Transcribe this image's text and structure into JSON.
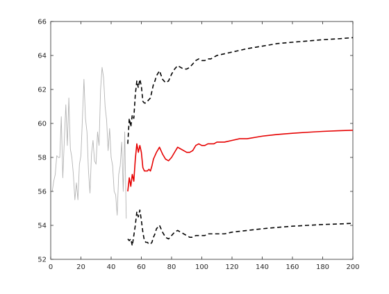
{
  "chart_data": {
    "type": "line",
    "title": "",
    "xlabel": "",
    "ylabel": "",
    "xlim": [
      0,
      200
    ],
    "ylim": [
      52,
      66
    ],
    "xticks": [
      0,
      20,
      40,
      60,
      80,
      100,
      120,
      140,
      160,
      180,
      200
    ],
    "yticks": [
      52,
      54,
      56,
      58,
      60,
      62,
      64,
      66
    ],
    "grid": false,
    "legend": "none",
    "series": [
      {
        "role": "observed",
        "color": "#b3b3b3",
        "style": "solid",
        "x": [
          1,
          2,
          3,
          4,
          5,
          6,
          7,
          8,
          9,
          10,
          11,
          12,
          13,
          14,
          15,
          16,
          17,
          18,
          19,
          20,
          21,
          22,
          23,
          24,
          25,
          26,
          27,
          28,
          29,
          30,
          31,
          32,
          33,
          34,
          35,
          36,
          37,
          38,
          39,
          40,
          41,
          42,
          43,
          44,
          45,
          46,
          47,
          48,
          49,
          50
        ],
        "y": [
          56.0,
          56.6,
          57.0,
          58.1,
          58.0,
          58.0,
          60.4,
          56.8,
          59.0,
          61.1,
          58.7,
          61.5,
          58.5,
          58.0,
          57.0,
          55.5,
          56.5,
          55.5,
          57.6,
          58.1,
          60.3,
          62.6,
          60.3,
          59.5,
          57.2,
          55.9,
          58.2,
          59.0,
          57.8,
          57.6,
          59.5,
          58.7,
          62.0,
          63.3,
          62.7,
          61.0,
          60.2,
          58.4,
          59.7,
          58.0,
          57.5,
          56.0,
          55.8,
          54.6,
          57.0,
          57.5,
          58.9,
          56.0,
          59.5,
          54.4
        ]
      },
      {
        "role": "forecast",
        "color": "#e60000",
        "style": "solid",
        "x": [
          51,
          52,
          53,
          54,
          55,
          56,
          57,
          58,
          59,
          60,
          61,
          62,
          63,
          64,
          65,
          66,
          67,
          68,
          69,
          70,
          72,
          74,
          76,
          78,
          80,
          82,
          84,
          86,
          88,
          90,
          92,
          94,
          96,
          98,
          100,
          102,
          104,
          106,
          108,
          110,
          115,
          120,
          125,
          130,
          140,
          150,
          160,
          170,
          180,
          190,
          200
        ],
        "y": [
          56.0,
          56.8,
          56.3,
          57.0,
          56.6,
          57.9,
          58.8,
          58.3,
          58.7,
          58.3,
          57.4,
          57.2,
          57.2,
          57.2,
          57.3,
          57.2,
          57.5,
          57.9,
          58.1,
          58.3,
          58.6,
          58.2,
          57.9,
          57.8,
          58.0,
          58.3,
          58.6,
          58.5,
          58.4,
          58.3,
          58.3,
          58.4,
          58.7,
          58.8,
          58.7,
          58.7,
          58.8,
          58.8,
          58.8,
          58.9,
          58.9,
          59.0,
          59.1,
          59.1,
          59.25,
          59.35,
          59.42,
          59.48,
          59.53,
          59.57,
          59.6
        ]
      },
      {
        "role": "upper-bound",
        "color": "#000000",
        "style": "dashed",
        "x": [
          51,
          52,
          53,
          54,
          55,
          56,
          57,
          58,
          59,
          60,
          61,
          62,
          63,
          64,
          65,
          66,
          67,
          68,
          69,
          70,
          72,
          74,
          76,
          78,
          80,
          82,
          84,
          86,
          88,
          90,
          92,
          94,
          96,
          98,
          100,
          102,
          104,
          106,
          108,
          110,
          115,
          120,
          125,
          130,
          140,
          150,
          160,
          170,
          180,
          190,
          200
        ],
        "y": [
          58.8,
          60.3,
          59.8,
          60.5,
          60.3,
          61.7,
          62.5,
          62.1,
          62.6,
          62.2,
          61.3,
          61.2,
          61.2,
          61.3,
          61.4,
          61.5,
          61.9,
          62.3,
          62.5,
          62.8,
          63.1,
          62.6,
          62.4,
          62.5,
          62.9,
          63.2,
          63.4,
          63.3,
          63.2,
          63.2,
          63.3,
          63.5,
          63.7,
          63.8,
          63.7,
          63.7,
          63.8,
          63.8,
          63.9,
          64.0,
          64.1,
          64.2,
          64.3,
          64.4,
          64.55,
          64.7,
          64.78,
          64.85,
          64.93,
          64.98,
          65.05
        ]
      },
      {
        "role": "lower-bound",
        "color": "#000000",
        "style": "dashed",
        "x": [
          51,
          52,
          53,
          54,
          55,
          56,
          57,
          58,
          59,
          60,
          61,
          62,
          63,
          64,
          65,
          66,
          67,
          68,
          69,
          70,
          72,
          74,
          76,
          78,
          80,
          82,
          84,
          86,
          88,
          90,
          92,
          94,
          96,
          98,
          100,
          102,
          104,
          106,
          108,
          110,
          115,
          120,
          125,
          130,
          140,
          150,
          160,
          170,
          180,
          190,
          200
        ],
        "y": [
          53.2,
          53.1,
          53.2,
          52.8,
          53.4,
          54.0,
          54.8,
          54.5,
          54.9,
          54.3,
          53.6,
          53.1,
          53.0,
          53.0,
          52.9,
          52.9,
          53.0,
          53.3,
          53.5,
          53.8,
          54.0,
          53.6,
          53.3,
          53.2,
          53.4,
          53.6,
          53.7,
          53.6,
          53.5,
          53.4,
          53.3,
          53.3,
          53.4,
          53.4,
          53.4,
          53.4,
          53.5,
          53.5,
          53.5,
          53.5,
          53.5,
          53.6,
          53.65,
          53.7,
          53.8,
          53.88,
          53.95,
          54.0,
          54.05,
          54.08,
          54.12
        ]
      }
    ]
  }
}
